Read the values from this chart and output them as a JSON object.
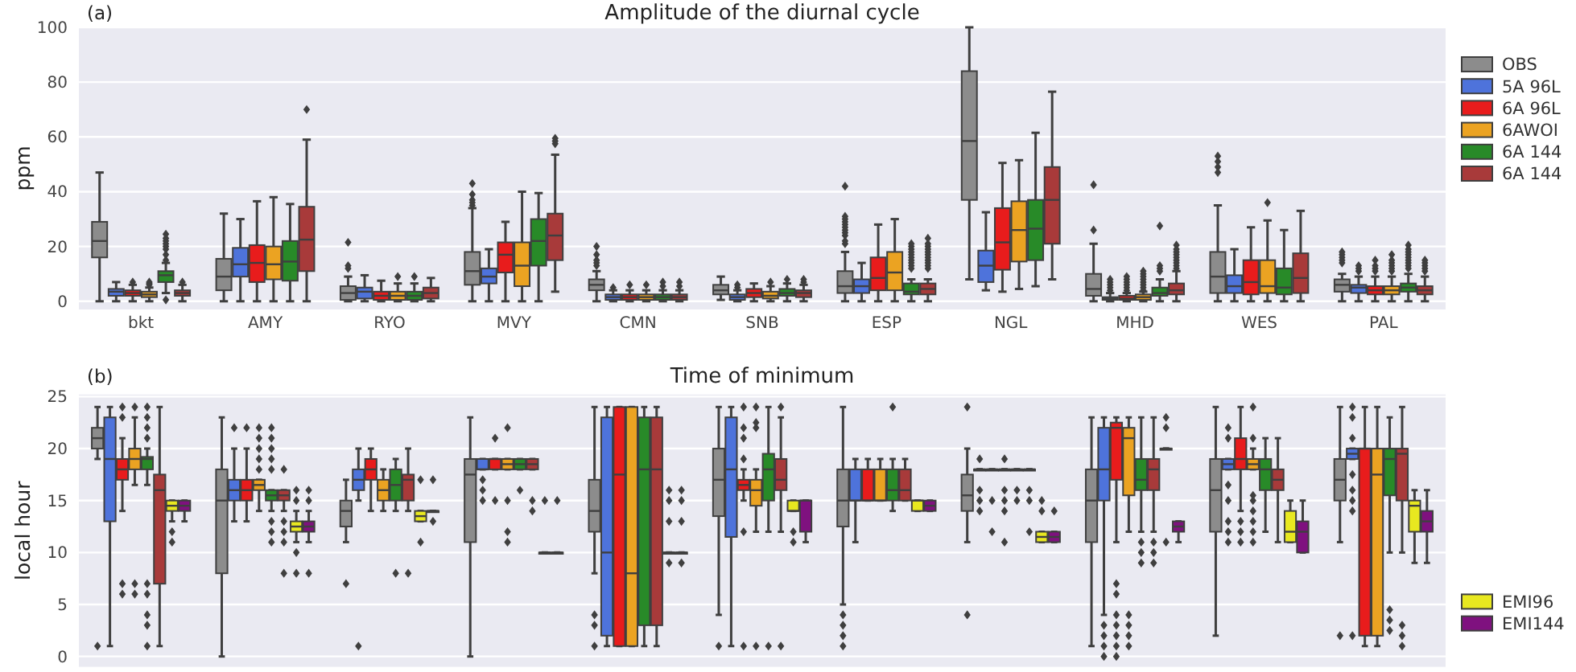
{
  "chart_data": [
    {
      "type": "box",
      "title": "Amplitude of the diurnal cycle",
      "ylabel": "ppm",
      "annotations": [
        "(a)"
      ],
      "categories": [
        "bkt",
        "AMY",
        "RYO",
        "MVY",
        "CMN",
        "SNB",
        "ESP",
        "NGL",
        "MHD",
        "WES",
        "PAL"
      ],
      "ylim": [
        -3,
        100
      ],
      "yticks": [
        0,
        20,
        40,
        60,
        80,
        100
      ],
      "grid": "y",
      "legend": "top right",
      "series": [
        {
          "name": "OBS",
          "color": "#8c8c8c",
          "boxes": [
            {
              "low": 0,
              "q1": 16,
              "median": 22,
              "q3": 29,
              "high": 47
            },
            {
              "low": 0,
              "q1": 4,
              "median": 9,
              "q3": 15.5,
              "high": 32
            },
            {
              "low": 0,
              "q1": 0.5,
              "median": 3,
              "q3": 5.5,
              "high": 9,
              "outliers": [
                12,
                13,
                21.5
              ]
            },
            {
              "low": 0,
              "q1": 6,
              "median": 11,
              "q3": 18,
              "high": 34,
              "outliers": [
                35,
                36,
                37,
                39,
                43
              ]
            },
            {
              "low": 0,
              "q1": 4,
              "median": 6,
              "q3": 8,
              "high": 11,
              "outliers": [
                13,
                14,
                15,
                17,
                20
              ]
            },
            {
              "low": 0.5,
              "q1": 2.5,
              "median": 4,
              "q3": 6,
              "high": 9
            },
            {
              "low": 0,
              "q1": 3,
              "median": 5.5,
              "q3": 11,
              "high": 18,
              "outliers": [
                21,
                22,
                24,
                25,
                26,
                27,
                28,
                29,
                30,
                31,
                42
              ]
            },
            {
              "low": 8,
              "q1": 37,
              "median": 58.5,
              "q3": 84,
              "high": 100
            },
            {
              "low": 0,
              "q1": 2,
              "median": 4.5,
              "q3": 10,
              "high": 21,
              "outliers": [
                26,
                42.5
              ]
            },
            {
              "low": 0,
              "q1": 3,
              "median": 9,
              "q3": 18,
              "high": 35,
              "outliers": [
                47,
                49,
                51,
                53
              ]
            },
            {
              "low": 0,
              "q1": 3.5,
              "median": 6,
              "q3": 8,
              "high": 10,
              "outliers": [
                14,
                15,
                16,
                17,
                18
              ]
            }
          ]
        },
        {
          "name": "5A 96L",
          "color": "#4e73db",
          "boxes": [
            {
              "low": 0,
              "q1": 2,
              "median": 3.5,
              "q3": 4.5,
              "high": 7
            },
            {
              "low": 0,
              "q1": 9,
              "median": 13.5,
              "q3": 19.5,
              "high": 30
            },
            {
              "low": 0,
              "q1": 1,
              "median": 3.5,
              "q3": 5,
              "high": 9.5
            },
            {
              "low": 0,
              "q1": 6.5,
              "median": 9,
              "q3": 12,
              "high": 19
            },
            {
              "low": 0,
              "q1": 0.5,
              "median": 1.5,
              "q3": 2.5,
              "high": 4,
              "outliers": [
                5
              ]
            },
            {
              "low": 0,
              "q1": 0.5,
              "median": 1.5,
              "q3": 2.5,
              "high": 4,
              "outliers": [
                5,
                6
              ]
            },
            {
              "low": 0,
              "q1": 3,
              "median": 5.5,
              "q3": 8,
              "high": 14
            },
            {
              "low": 4,
              "q1": 7,
              "median": 13,
              "q3": 18.5,
              "high": 32.5
            },
            {
              "low": 0,
              "q1": 0.5,
              "median": 1,
              "q3": 1.5,
              "high": 3,
              "outliers": [
                4,
                5,
                6,
                7,
                8
              ]
            },
            {
              "low": 0,
              "q1": 3,
              "median": 5.5,
              "q3": 9.5,
              "high": 19
            },
            {
              "low": 0,
              "q1": 3,
              "median": 5,
              "q3": 6,
              "high": 9,
              "outliers": [
                11,
                12,
                13
              ]
            }
          ]
        },
        {
          "name": "6A 96L",
          "color": "#e81c1c",
          "boxes": [
            {
              "low": 0,
              "q1": 2,
              "median": 3,
              "q3": 4,
              "high": 6,
              "outliers": [
                7
              ]
            },
            {
              "low": 0,
              "q1": 7,
              "median": 14,
              "q3": 20.5,
              "high": 36.5
            },
            {
              "low": 0,
              "q1": 0.5,
              "median": 2,
              "q3": 3.5,
              "high": 7.5
            },
            {
              "low": 0,
              "q1": 10.5,
              "median": 17,
              "q3": 21.5,
              "high": 29
            },
            {
              "low": 0,
              "q1": 0.5,
              "median": 1.5,
              "q3": 2.5,
              "high": 4,
              "outliers": [
                6
              ]
            },
            {
              "low": 0,
              "q1": 1.5,
              "median": 3,
              "q3": 4.5,
              "high": 6.5
            },
            {
              "low": 0,
              "q1": 4,
              "median": 8.5,
              "q3": 16,
              "high": 28
            },
            {
              "low": 3.5,
              "q1": 11.5,
              "median": 21.5,
              "q3": 34,
              "high": 50.5
            },
            {
              "low": 0,
              "q1": 0.5,
              "median": 1,
              "q3": 2,
              "high": 3,
              "outliers": [
                4,
                5,
                6,
                7,
                8,
                9
              ]
            },
            {
              "low": 0,
              "q1": 2.5,
              "median": 7,
              "q3": 15,
              "high": 27
            },
            {
              "low": 0,
              "q1": 2.5,
              "median": 4,
              "q3": 5.5,
              "high": 9,
              "outliers": [
                11,
                12,
                13,
                15
              ]
            }
          ]
        },
        {
          "name": "6AWOI",
          "color": "#eba322",
          "boxes": [
            {
              "low": 0,
              "q1": 1.5,
              "median": 2.5,
              "q3": 3.5,
              "high": 5,
              "outliers": [
                6,
                6.5,
                7
              ]
            },
            {
              "low": 0,
              "q1": 8,
              "median": 13.5,
              "q3": 20,
              "high": 38
            },
            {
              "low": 0,
              "q1": 0.5,
              "median": 2,
              "q3": 3.5,
              "high": 6.5,
              "outliers": [
                9
              ]
            },
            {
              "low": 0,
              "q1": 5.5,
              "median": 13,
              "q3": 21.5,
              "high": 40
            },
            {
              "low": 0,
              "q1": 0.5,
              "median": 1.5,
              "q3": 2.5,
              "high": 4,
              "outliers": [
                6
              ]
            },
            {
              "low": 0,
              "q1": 1,
              "median": 2,
              "q3": 3.5,
              "high": 5.5,
              "outliers": [
                7
              ]
            },
            {
              "low": 0,
              "q1": 4,
              "median": 10.5,
              "q3": 18,
              "high": 30
            },
            {
              "low": 4.5,
              "q1": 14.5,
              "median": 26,
              "q3": 36.5,
              "high": 51.5
            },
            {
              "low": 0,
              "q1": 0.5,
              "median": 1.5,
              "q3": 2.5,
              "high": 3.5,
              "outliers": [
                4,
                5,
                6,
                7,
                8,
                9,
                10,
                11
              ]
            },
            {
              "low": 0,
              "q1": 3,
              "median": 5.5,
              "q3": 15,
              "high": 29.5,
              "outliers": [
                36
              ]
            },
            {
              "low": 0,
              "q1": 2.5,
              "median": 4,
              "q3": 5.5,
              "high": 9,
              "outliers": [
                11,
                12,
                13,
                14,
                15,
                17
              ]
            }
          ]
        },
        {
          "name": "6A 144",
          "color": "#288a28",
          "boxes": [
            {
              "low": 3,
              "q1": 7,
              "median": 9.5,
              "q3": 11,
              "high": 14,
              "outliers": [
                0.5,
                15,
                17,
                19,
                20,
                21,
                22,
                23,
                24.5
              ]
            },
            {
              "low": 0,
              "q1": 7.5,
              "median": 14.5,
              "q3": 22,
              "high": 35.5
            },
            {
              "low": 0,
              "q1": 0.5,
              "median": 2,
              "q3": 3.5,
              "high": 6.5,
              "outliers": [
                9
              ]
            },
            {
              "low": 0,
              "q1": 13,
              "median": 22,
              "q3": 30,
              "high": 39.5
            },
            {
              "low": 0,
              "q1": 0.5,
              "median": 1.5,
              "q3": 2.5,
              "high": 4,
              "outliers": [
                5.5,
                7
              ]
            },
            {
              "low": 0,
              "q1": 2,
              "median": 3,
              "q3": 4.5,
              "high": 6.5,
              "outliers": [
                8
              ]
            },
            {
              "low": 0,
              "q1": 2.5,
              "median": 3.5,
              "q3": 6.5,
              "high": 8,
              "outliers": [
                12,
                13,
                14,
                15,
                16,
                17,
                18,
                19,
                20,
                21
              ]
            },
            {
              "low": 5.5,
              "q1": 15,
              "median": 26.5,
              "q3": 37,
              "high": 61.5
            },
            {
              "low": 0,
              "q1": 2,
              "median": 3,
              "q3": 5,
              "high": 8,
              "outliers": [
                11,
                12,
                13,
                27.5
              ]
            },
            {
              "low": 0,
              "q1": 2.5,
              "median": 5,
              "q3": 12,
              "high": 26
            },
            {
              "low": 0,
              "q1": 3.5,
              "median": 5,
              "q3": 6.5,
              "high": 10,
              "outliers": [
                12,
                13,
                14,
                15,
                16,
                17,
                18,
                19,
                20.5
              ]
            }
          ]
        },
        {
          "name": "6A 144",
          "color": "#a83a3a",
          "boxes": [
            {
              "low": 0,
              "q1": 2,
              "median": 3,
              "q3": 4,
              "high": 6,
              "outliers": [
                7
              ]
            },
            {
              "low": 0,
              "q1": 11,
              "median": 22.5,
              "q3": 34.5,
              "high": 59,
              "outliers": [
                70
              ]
            },
            {
              "low": 0,
              "q1": 1,
              "median": 3,
              "q3": 5,
              "high": 8.5
            },
            {
              "low": 3.5,
              "q1": 15,
              "median": 24,
              "q3": 32,
              "high": 53.5,
              "outliers": [
                57.5,
                58.5,
                59.5
              ]
            },
            {
              "low": 0,
              "q1": 0.5,
              "median": 1.5,
              "q3": 2.5,
              "high": 4,
              "outliers": [
                5.5,
                7
              ]
            },
            {
              "low": 0,
              "q1": 1.5,
              "median": 3,
              "q3": 4,
              "high": 6,
              "outliers": [
                7,
                8
              ]
            },
            {
              "low": 0,
              "q1": 2.5,
              "median": 4.5,
              "q3": 6.5,
              "high": 8,
              "outliers": [
                12,
                13,
                14,
                15,
                16,
                17,
                18,
                19,
                20,
                21,
                23
              ]
            },
            {
              "low": 8,
              "q1": 21,
              "median": 37,
              "q3": 49,
              "high": 76.5
            },
            {
              "low": 0,
              "q1": 2.5,
              "median": 4,
              "q3": 6.5,
              "high": 11,
              "outliers": [
                12,
                13,
                14,
                15,
                16,
                17,
                18,
                19,
                20.5
              ]
            },
            {
              "low": 0,
              "q1": 3,
              "median": 8.5,
              "q3": 17.5,
              "high": 33
            },
            {
              "low": 0,
              "q1": 2.5,
              "median": 4,
              "q3": 5.5,
              "high": 9,
              "outliers": [
                11,
                12,
                13,
                14,
                15
              ]
            }
          ]
        }
      ]
    },
    {
      "type": "box",
      "title": "Time of minimum",
      "ylabel": "local hour",
      "annotations": [
        "(b)"
      ],
      "categories": [
        "bkt",
        "AMY",
        "RYO",
        "MVY",
        "CMN",
        "SNB",
        "ESP",
        "NGL",
        "MHD",
        "WES",
        "PAL"
      ],
      "tick_labels": "y",
      "ylim": [
        -1,
        25.2
      ],
      "yticks": [
        0,
        5,
        10,
        15,
        20,
        25
      ],
      "grid": "y",
      "legend": "bottom right",
      "series": [
        {
          "color": "#8c8c8c",
          "boxes": [
            {
              "low": 19,
              "q1": 20,
              "median": 21,
              "q3": 22,
              "high": 24,
              "outliers": [
                1
              ]
            },
            {
              "low": 0,
              "q1": 8,
              "median": 15,
              "q3": 18,
              "high": 23
            },
            {
              "low": 11,
              "q1": 12.5,
              "median": 14,
              "q3": 15,
              "high": 17,
              "outliers": [
                7
              ]
            },
            {
              "low": 0,
              "q1": 11,
              "median": 17.5,
              "q3": 19,
              "high": 23
            },
            {
              "low": 8,
              "q1": 12,
              "median": 14,
              "q3": 17,
              "high": 24,
              "outliers": [
                1,
                3,
                4
              ]
            },
            {
              "low": 4,
              "q1": 13.5,
              "median": 17,
              "q3": 20,
              "high": 24,
              "outliers": [
                1
              ]
            },
            {
              "low": 5,
              "q1": 12.5,
              "median": 15,
              "q3": 18,
              "high": 24,
              "outliers": [
                1,
                2,
                3,
                4
              ]
            },
            {
              "low": 11,
              "q1": 14,
              "median": 15.5,
              "q3": 17.5,
              "high": 20,
              "outliers": [
                4,
                24
              ]
            },
            {
              "low": 1,
              "q1": 11,
              "median": 15,
              "q3": 18,
              "high": 23
            },
            {
              "low": 2,
              "q1": 12,
              "median": 16,
              "q3": 19,
              "high": 24
            },
            {
              "low": 11,
              "q1": 15,
              "median": 17,
              "q3": 19,
              "high": 24,
              "outliers": [
                2
              ]
            }
          ]
        },
        {
          "color": "#4e73db",
          "boxes": [
            {
              "low": 1,
              "q1": 13,
              "median": 19,
              "q3": 23,
              "high": 24
            },
            {
              "low": 13,
              "q1": 15,
              "median": 16,
              "q3": 17,
              "high": 20,
              "outliers": [
                22
              ]
            },
            {
              "low": 15,
              "q1": 16,
              "median": 17,
              "q3": 18,
              "high": 20,
              "outliers": [
                1
              ]
            },
            {
              "low": 18,
              "q1": 18,
              "median": 18,
              "q3": 19,
              "high": 19,
              "outliers": [
                15,
                16,
                17
              ]
            },
            {
              "low": 1,
              "q1": 2,
              "median": 10,
              "q3": 23,
              "high": 24
            },
            {
              "low": 1,
              "q1": 11.5,
              "median": 18,
              "q3": 23,
              "high": 24
            },
            {
              "low": 11,
              "q1": 15,
              "median": 15,
              "q3": 18,
              "high": 19
            },
            {
              "low": 18,
              "q1": 18,
              "median": 18,
              "q3": 18,
              "high": 18,
              "outliers": [
                14,
                15,
                16,
                19
              ]
            },
            {
              "low": 4,
              "q1": 15,
              "median": 18,
              "q3": 22,
              "high": 23,
              "outliers": [
                0,
                1,
                2,
                3
              ]
            },
            {
              "low": 18,
              "q1": 18,
              "median": 18.5,
              "q3": 19,
              "high": 19,
              "outliers": [
                11,
                12,
                13,
                15,
                16.5,
                21,
                22
              ]
            },
            {
              "low": 19,
              "q1": 19,
              "median": 19.5,
              "q3": 20,
              "high": 20,
              "outliers": [
                2,
                14,
                15,
                16,
                17.5,
                21,
                23,
                24
              ]
            }
          ]
        },
        {
          "color": "#e81c1c",
          "boxes": [
            {
              "low": 14,
              "q1": 17,
              "median": 18,
              "q3": 19,
              "high": 21,
              "outliers": [
                6,
                7,
                23,
                24
              ]
            },
            {
              "low": 13,
              "q1": 15,
              "median": 16,
              "q3": 17,
              "high": 20,
              "outliers": [
                22
              ]
            },
            {
              "low": 14,
              "q1": 17,
              "median": 18,
              "q3": 19,
              "high": 20
            },
            {
              "low": 18,
              "q1": 18,
              "median": 19,
              "q3": 19,
              "high": 19,
              "outliers": [
                15,
                21
              ]
            },
            {
              "low": 1,
              "q1": 1,
              "median": 17.5,
              "q3": 24,
              "high": 24
            },
            {
              "low": 15,
              "q1": 16,
              "median": 16.5,
              "q3": 17,
              "high": 18,
              "outliers": [
                1,
                12,
                19,
                21,
                22,
                24
              ]
            },
            {
              "low": 15,
              "q1": 15,
              "median": 15,
              "q3": 18,
              "high": 19
            },
            {
              "low": 18,
              "q1": 18,
              "median": 18,
              "q3": 18,
              "high": 18,
              "outliers": [
                12,
                15
              ]
            },
            {
              "low": 11,
              "q1": 17,
              "median": 22,
              "q3": 22.5,
              "high": 23,
              "outliers": [
                0,
                1,
                2,
                3,
                4,
                6,
                7
              ]
            },
            {
              "low": 14,
              "q1": 18,
              "median": 19,
              "q3": 21,
              "high": 24,
              "outliers": [
                11,
                12,
                13
              ]
            },
            {
              "low": 1,
              "q1": 2,
              "median": 20,
              "q3": 20,
              "high": 24
            }
          ]
        },
        {
          "color": "#eba322",
          "boxes": [
            {
              "low": 16.5,
              "q1": 18,
              "median": 19,
              "q3": 20,
              "high": 23,
              "outliers": [
                6,
                7,
                24
              ]
            },
            {
              "low": 14,
              "q1": 16,
              "median": 16.5,
              "q3": 17,
              "high": 17,
              "outliers": [
                18,
                19,
                20,
                21,
                22
              ]
            },
            {
              "low": 14,
              "q1": 15,
              "median": 16,
              "q3": 17,
              "high": 18
            },
            {
              "low": 18,
              "q1": 18,
              "median": 18.5,
              "q3": 19,
              "high": 19,
              "outliers": [
                11,
                12,
                15,
                22
              ]
            },
            {
              "low": 1,
              "q1": 1,
              "median": 8,
              "q3": 24,
              "high": 24
            },
            {
              "low": 12,
              "q1": 14.5,
              "median": 16,
              "q3": 17,
              "high": 18,
              "outliers": [
                1,
                22,
                22.5,
                24
              ]
            },
            {
              "low": 15,
              "q1": 15,
              "median": 15,
              "q3": 18,
              "high": 19
            },
            {
              "low": 18,
              "q1": 18,
              "median": 18,
              "q3": 18,
              "high": 18,
              "outliers": [
                11,
                14,
                15,
                16,
                19
              ]
            },
            {
              "low": 12,
              "q1": 15.5,
              "median": 21,
              "q3": 22,
              "high": 23,
              "outliers": [
                1,
                2,
                3,
                4
              ]
            },
            {
              "low": 18,
              "q1": 18,
              "median": 18.5,
              "q3": 19,
              "high": 20,
              "outliers": [
                11,
                12,
                13,
                14,
                15,
                15.5,
                21,
                24
              ]
            },
            {
              "low": 1,
              "q1": 2,
              "median": 17.5,
              "q3": 20,
              "high": 24
            }
          ]
        },
        {
          "color": "#288a28",
          "boxes": [
            {
              "low": 16.5,
              "q1": 18,
              "median": 19,
              "q3": 19.2,
              "high": 20,
              "outliers": [
                1,
                3,
                4,
                6,
                7,
                21,
                22,
                23,
                24
              ]
            },
            {
              "low": 14,
              "q1": 15,
              "median": 15.5,
              "q3": 16,
              "high": 16,
              "outliers": [
                11,
                12,
                13,
                18,
                19,
                20,
                21,
                22
              ]
            },
            {
              "low": 14,
              "q1": 15,
              "median": 16.5,
              "q3": 18,
              "high": 19,
              "outliers": [
                8
              ]
            },
            {
              "low": 18,
              "q1": 18,
              "median": 18.5,
              "q3": 19,
              "high": 19,
              "outliers": [
                16
              ]
            },
            {
              "low": 1,
              "q1": 3,
              "median": 18,
              "q3": 23,
              "high": 24
            },
            {
              "low": 12,
              "q1": 15,
              "median": 18,
              "q3": 19.5,
              "high": 24,
              "outliers": [
                1
              ]
            },
            {
              "low": 14,
              "q1": 15,
              "median": 16,
              "q3": 18,
              "high": 19,
              "outliers": [
                24
              ]
            },
            {
              "low": 18,
              "q1": 18,
              "median": 18,
              "q3": 18,
              "high": 18,
              "outliers": [
                15,
                16
              ]
            },
            {
              "low": 12,
              "q1": 16,
              "median": 17,
              "q3": 19,
              "high": 23,
              "outliers": [
                9,
                10,
                11
              ]
            },
            {
              "low": 12,
              "q1": 16,
              "median": 18,
              "q3": 19,
              "high": 21
            },
            {
              "low": 10,
              "q1": 15.5,
              "median": 19,
              "q3": 20,
              "high": 23,
              "outliers": [
                2.5,
                3.5,
                4.5
              ]
            }
          ]
        },
        {
          "color": "#a83a3a",
          "boxes": [
            {
              "low": 1,
              "q1": 7,
              "median": 16,
              "q3": 17.5,
              "high": 24
            },
            {
              "low": 14,
              "q1": 15,
              "median": 15.5,
              "q3": 16,
              "high": 16,
              "outliers": [
                8,
                11,
                12,
                13,
                18
              ]
            },
            {
              "low": 14,
              "q1": 15,
              "median": 17,
              "q3": 17.5,
              "high": 20,
              "outliers": [
                8
              ]
            },
            {
              "low": 18,
              "q1": 18,
              "median": 18.5,
              "q3": 19,
              "high": 19,
              "outliers": [
                14,
                15
              ]
            },
            {
              "low": 1,
              "q1": 3,
              "median": 18,
              "q3": 23,
              "high": 24
            },
            {
              "low": 12,
              "q1": 16,
              "median": 17,
              "q3": 19,
              "high": 23,
              "outliers": [
                1,
                24
              ]
            },
            {
              "low": 15,
              "q1": 15,
              "median": 16,
              "q3": 18,
              "high": 19
            },
            {
              "low": 18,
              "q1": 18,
              "median": 18,
              "q3": 18,
              "high": 18,
              "outliers": [
                12,
                15,
                16
              ]
            },
            {
              "low": 12,
              "q1": 16,
              "median": 18,
              "q3": 19,
              "high": 23,
              "outliers": [
                9,
                10,
                11
              ]
            },
            {
              "low": 11,
              "q1": 16,
              "median": 17,
              "q3": 18,
              "high": 21
            },
            {
              "low": 10,
              "q1": 15,
              "median": 19.5,
              "q3": 20,
              "high": 24,
              "outliers": [
                1,
                2,
                3
              ]
            }
          ]
        },
        {
          "name": "EMI96",
          "color": "#e8e820",
          "boxes": [
            {
              "low": 13,
              "q1": 14,
              "median": 14.5,
              "q3": 15,
              "high": 15,
              "outliers": [
                11,
                12
              ]
            },
            {
              "low": 11,
              "q1": 12,
              "median": 12.5,
              "q3": 13,
              "high": 14,
              "outliers": [
                8,
                10,
                15,
                16
              ]
            },
            {
              "low": 13,
              "q1": 13,
              "median": 13.5,
              "q3": 14,
              "high": 14,
              "outliers": [
                11,
                17
              ]
            },
            {
              "low": 10,
              "q1": 10,
              "median": 10,
              "q3": 10,
              "high": 10,
              "outliers": [
                15
              ]
            },
            {
              "low": 10,
              "q1": 10,
              "median": 10,
              "q3": 10,
              "high": 10,
              "outliers": [
                9,
                13,
                15,
                16
              ]
            },
            {
              "low": 14,
              "q1": 14,
              "median": 14,
              "q3": 15,
              "high": 15,
              "outliers": [
                11,
                12
              ]
            },
            {
              "low": 14,
              "q1": 14,
              "median": 15,
              "q3": 15,
              "high": 15
            },
            {
              "low": 11,
              "q1": 11,
              "median": 11.5,
              "q3": 12,
              "high": 12,
              "outliers": [
                14,
                15
              ]
            },
            {
              "low": 20,
              "q1": 20,
              "median": 20,
              "q3": 20,
              "high": 20,
              "outliers": [
                11,
                22,
                23
              ]
            },
            {
              "low": 11,
              "q1": 11,
              "median": 12,
              "q3": 14,
              "high": 15
            },
            {
              "low": 9,
              "q1": 12,
              "median": 14.5,
              "q3": 15,
              "high": 16
            }
          ]
        },
        {
          "name": "EMI144",
          "color": "#7f117f",
          "boxes": [
            {
              "low": 13,
              "q1": 14,
              "median": 14.5,
              "q3": 15,
              "high": 15
            },
            {
              "low": 11,
              "q1": 12,
              "median": 12.5,
              "q3": 13,
              "high": 14,
              "outliers": [
                8,
                15,
                16
              ]
            },
            {
              "low": 14,
              "q1": 14,
              "median": 14,
              "q3": 14,
              "high": 14,
              "outliers": [
                13,
                17
              ]
            },
            {
              "low": 10,
              "q1": 10,
              "median": 10,
              "q3": 10,
              "high": 10,
              "outliers": [
                15
              ]
            },
            {
              "low": 10,
              "q1": 10,
              "median": 10,
              "q3": 10,
              "high": 10,
              "outliers": [
                9,
                13,
                15,
                16
              ]
            },
            {
              "low": 11,
              "q1": 12,
              "median": 15,
              "q3": 15,
              "high": 15
            },
            {
              "low": 14,
              "q1": 14,
              "median": 14.5,
              "q3": 15,
              "high": 15
            },
            {
              "low": 11,
              "q1": 11,
              "median": 11.5,
              "q3": 12,
              "high": 12,
              "outliers": [
                14
              ]
            },
            {
              "low": 11,
              "q1": 12,
              "median": 12.5,
              "q3": 13,
              "high": 13
            },
            {
              "low": 10,
              "q1": 10,
              "median": 12,
              "q3": 13,
              "high": 15
            },
            {
              "low": 9,
              "q1": 12,
              "median": 13,
              "q3": 14,
              "high": 16
            }
          ]
        }
      ]
    }
  ]
}
